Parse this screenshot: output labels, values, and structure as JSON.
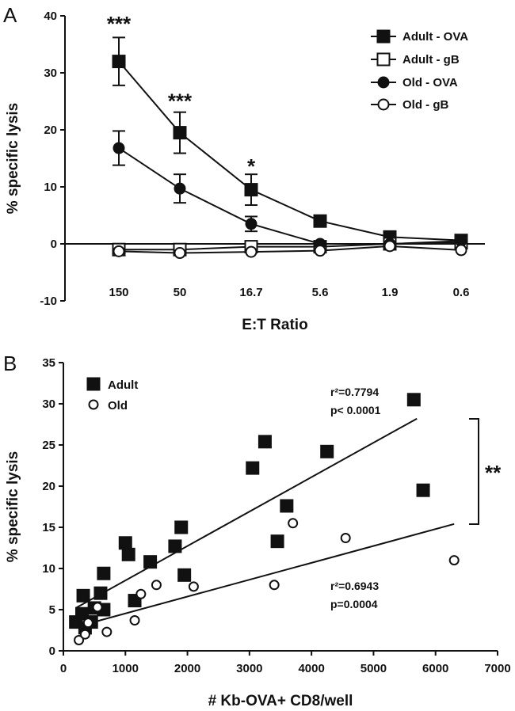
{
  "chart_data": [
    {
      "type": "line",
      "panel_label": "A",
      "xlabel": "E:T Ratio",
      "ylabel": "% specific lysis",
      "categories": [
        "150",
        "50",
        "16.7",
        "5.6",
        "1.9",
        "0.6"
      ],
      "ylim": [
        -10,
        40
      ],
      "yticks": [
        "-10",
        "0",
        "10",
        "20",
        "30",
        "40"
      ],
      "grid": false,
      "legend_position": "top-right",
      "series": [
        {
          "name": "Adult - OVA",
          "marker": "square",
          "filled": true,
          "values": [
            32,
            19.5,
            9.5,
            4,
            1.2,
            0.6
          ],
          "errors": [
            4.2,
            3.6,
            2.7,
            0,
            0,
            0
          ]
        },
        {
          "name": "Adult - gB",
          "marker": "square",
          "filled": false,
          "values": [
            -1,
            -1,
            -0.5,
            -0.5,
            0,
            0.2
          ],
          "errors": [
            0,
            0,
            0,
            0,
            0,
            0
          ]
        },
        {
          "name": "Old - OVA",
          "marker": "circle",
          "filled": true,
          "values": [
            16.8,
            9.7,
            3.5,
            0,
            0,
            0.5
          ],
          "errors": [
            3,
            2.5,
            1.3,
            0,
            0,
            0
          ]
        },
        {
          "name": "Old - gB",
          "marker": "circle",
          "filled": false,
          "values": [
            -1.3,
            -1.6,
            -1.4,
            -1.2,
            -0.4,
            -1.1
          ],
          "errors": [
            0,
            0,
            0,
            0,
            0,
            0
          ]
        }
      ],
      "significance": [
        {
          "category_index": 0,
          "label": "***",
          "y": 39
        },
        {
          "category_index": 1,
          "label": "***",
          "y": 25.5
        },
        {
          "category_index": 2,
          "label": "*",
          "y": 14
        }
      ]
    },
    {
      "type": "scatter",
      "panel_label": "B",
      "xlabel": "# Kb-OVA+ CD8/well",
      "ylabel": "% specific lysis",
      "xlim": [
        0,
        7000
      ],
      "ylim": [
        0,
        35
      ],
      "xticks": [
        "0",
        "1000",
        "2000",
        "3000",
        "4000",
        "5000",
        "6000",
        "7000"
      ],
      "yticks": [
        "0",
        "5",
        "10",
        "15",
        "20",
        "25",
        "30",
        "35"
      ],
      "grid": false,
      "legend_position": "top-left",
      "series": [
        {
          "name": "Adult",
          "marker": "square",
          "filled": true,
          "points": [
            [
              200,
              3.5
            ],
            [
              300,
              4.5
            ],
            [
              320,
              6.7
            ],
            [
              350,
              2.8
            ],
            [
              450,
              3.5
            ],
            [
              500,
              5.2
            ],
            [
              600,
              7
            ],
            [
              650,
              9.4
            ],
            [
              650,
              5
            ],
            [
              1000,
              13.1
            ],
            [
              1050,
              11.7
            ],
            [
              1150,
              6.1
            ],
            [
              1400,
              10.8
            ],
            [
              1800,
              12.7
            ],
            [
              1900,
              15
            ],
            [
              1950,
              9.2
            ],
            [
              3050,
              22.2
            ],
            [
              3250,
              25.4
            ],
            [
              3450,
              13.3
            ],
            [
              3600,
              17.6
            ],
            [
              4250,
              24.2
            ],
            [
              5650,
              30.5
            ],
            [
              5800,
              19.5
            ]
          ],
          "fit": {
            "x": [
              200,
              5700
            ],
            "y": [
              5.2,
              28.2
            ],
            "r2_label": "r²=0.7794",
            "p_label": "p< 0.0001"
          }
        },
        {
          "name": "Old",
          "marker": "circle",
          "filled": false,
          "points": [
            [
              250,
              1.3
            ],
            [
              350,
              2
            ],
            [
              400,
              3.4
            ],
            [
              550,
              5.3
            ],
            [
              700,
              2.3
            ],
            [
              1150,
              3.7
            ],
            [
              1250,
              6.9
            ],
            [
              1500,
              8
            ],
            [
              2100,
              7.8
            ],
            [
              3400,
              8
            ],
            [
              3700,
              15.5
            ],
            [
              4550,
              13.7
            ],
            [
              6300,
              11
            ]
          ],
          "fit": {
            "x": [
              200,
              6300
            ],
            "y": [
              2.9,
              15.4
            ],
            "r2_label": "r²=0.6943",
            "p_label": "p=0.0004"
          }
        }
      ],
      "significance": [
        {
          "label": "**",
          "between": [
            "Adult",
            "Old"
          ]
        }
      ]
    }
  ]
}
